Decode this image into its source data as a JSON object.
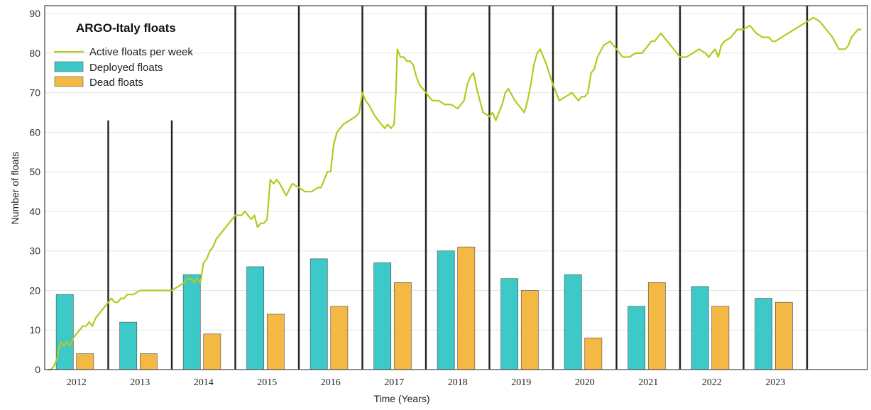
{
  "chart_data": {
    "type": "bar",
    "title": "ARGO-Italy floats",
    "xlabel": "Time (Years)",
    "ylabel": "Number of floats",
    "ylim": [
      0,
      92
    ],
    "yticks": [
      0,
      10,
      20,
      30,
      40,
      50,
      60,
      70,
      80,
      90
    ],
    "xlim": [
      2011.5,
      2024.45
    ],
    "grid": true,
    "legend_position": "top-left",
    "categories": [
      "2012",
      "2013",
      "2014",
      "2015",
      "2016",
      "2017",
      "2018",
      "2019",
      "2020",
      "2021",
      "2022",
      "2023"
    ],
    "series": [
      {
        "name": "Deployed floats",
        "type": "bar",
        "color": "#3cc9c7",
        "values": [
          19,
          12,
          24,
          26,
          28,
          27,
          30,
          23,
          24,
          16,
          21,
          18
        ]
      },
      {
        "name": "Dead floats",
        "type": "bar",
        "color": "#f3b944",
        "values": [
          4,
          4,
          9,
          14,
          16,
          22,
          31,
          20,
          8,
          22,
          16,
          17
        ]
      },
      {
        "name": "Active floats per week",
        "type": "line",
        "color": "#b5c91e",
        "x": [
          2011.55,
          2011.6,
          2011.65,
          2011.7,
          2011.72,
          2011.74,
          2011.76,
          2011.8,
          2011.85,
          2011.9,
          2011.95,
          2012.0,
          2012.05,
          2012.1,
          2012.15,
          2012.2,
          2012.25,
          2012.3,
          2012.35,
          2012.4,
          2012.45,
          2012.5,
          2012.55,
          2012.6,
          2012.65,
          2012.7,
          2012.75,
          2012.8,
          2012.9,
          2013.0,
          2013.1,
          2013.2,
          2013.3,
          2013.4,
          2013.5,
          2013.6,
          2013.7,
          2013.75,
          2013.8,
          2013.85,
          2013.9,
          2013.95,
          2014.0,
          2014.05,
          2014.1,
          2014.15,
          2014.2,
          2014.25,
          2014.3,
          2014.35,
          2014.4,
          2014.45,
          2014.5,
          2014.55,
          2014.6,
          2014.65,
          2014.7,
          2014.75,
          2014.8,
          2014.85,
          2014.9,
          2014.95,
          2015.0,
          2015.05,
          2015.1,
          2015.15,
          2015.2,
          2015.3,
          2015.4,
          2015.5,
          2015.6,
          2015.7,
          2015.8,
          2015.85,
          2015.9,
          2015.95,
          2016.0,
          2016.05,
          2016.1,
          2016.2,
          2016.3,
          2016.4,
          2016.45,
          2016.5,
          2016.55,
          2016.6,
          2016.7,
          2016.8,
          2016.85,
          2016.9,
          2016.95,
          2017.0,
          2017.03,
          2017.05,
          2017.1,
          2017.15,
          2017.2,
          2017.25,
          2017.3,
          2017.35,
          2017.4,
          2017.5,
          2017.6,
          2017.7,
          2017.8,
          2017.9,
          2018.0,
          2018.1,
          2018.15,
          2018.2,
          2018.25,
          2018.3,
          2018.4,
          2018.5,
          2018.55,
          2018.6,
          2018.65,
          2018.7,
          2018.75,
          2018.8,
          2018.9,
          2018.95,
          2019.0,
          2019.05,
          2019.1,
          2019.15,
          2019.2,
          2019.25,
          2019.3,
          2019.35,
          2019.4,
          2019.5,
          2019.6,
          2019.7,
          2019.8,
          2019.9,
          2019.95,
          2020.0,
          2020.05,
          2020.1,
          2020.15,
          2020.2,
          2020.3,
          2020.4,
          2020.5,
          2020.6,
          2020.7,
          2020.8,
          2020.9,
          2020.95,
          2021.0,
          2021.05,
          2021.1,
          2021.2,
          2021.3,
          2021.4,
          2021.5,
          2021.6,
          2021.7,
          2021.8,
          2021.9,
          2021.95,
          2022.0,
          2022.05,
          2022.1,
          2022.15,
          2022.2,
          2022.3,
          2022.4,
          2022.5,
          2022.6,
          2022.7,
          2022.8,
          2022.9,
          2022.95,
          2023.0,
          2023.1,
          2023.2,
          2023.3,
          2023.4,
          2023.5,
          2023.6,
          2023.7,
          2023.8,
          2023.9,
          2024.0,
          2024.1,
          2024.15,
          2024.2,
          2024.3,
          2024.35
        ],
        "y": [
          0,
          0,
          1,
          3,
          5,
          6,
          7,
          6,
          7,
          6,
          8,
          9,
          10,
          11,
          11,
          12,
          11,
          13,
          14,
          15,
          16,
          17,
          18,
          17,
          17,
          18,
          18,
          19,
          19,
          20,
          20,
          20,
          20,
          20,
          20,
          21,
          22,
          23,
          23,
          22,
          23,
          22,
          27,
          28,
          30,
          31,
          33,
          34,
          35,
          36,
          37,
          38,
          39,
          39,
          39,
          40,
          39,
          38,
          39,
          36,
          37,
          37,
          38,
          48,
          47,
          48,
          47,
          44,
          47,
          46,
          45,
          45,
          46,
          46,
          48,
          50,
          50,
          57,
          60,
          62,
          63,
          64,
          65,
          70,
          68,
          67,
          64,
          62,
          61,
          62,
          61,
          62,
          71,
          81,
          79,
          79,
          78,
          78,
          77,
          74,
          72,
          70,
          68,
          68,
          67,
          67,
          66,
          68,
          72,
          74,
          75,
          71,
          65,
          64,
          65,
          63,
          65,
          67,
          70,
          71,
          68,
          67,
          66,
          65,
          68,
          72,
          77,
          80,
          81,
          79,
          77,
          72,
          68,
          69,
          70,
          68,
          69,
          69,
          70,
          75,
          76,
          79,
          82,
          83,
          81,
          79,
          79,
          80,
          80,
          81,
          82,
          83,
          83,
          85,
          83,
          81,
          79,
          79,
          80,
          81,
          80,
          79,
          80,
          81,
          79,
          82,
          83,
          84,
          86,
          86,
          87,
          85,
          84,
          84,
          83,
          83,
          84,
          85,
          86,
          87,
          88,
          89,
          88,
          86,
          84,
          81,
          81,
          82,
          84,
          86,
          86
        ]
      }
    ],
    "year_separators": [
      2012.5,
      2013.5,
      2014.5,
      2015.5,
      2016.5,
      2017.5,
      2018.5,
      2019.5,
      2020.5,
      2021.5,
      2022.5,
      2023.5
    ],
    "short_separators": [
      2012.5,
      2013.5
    ],
    "short_separator_top": 63
  }
}
